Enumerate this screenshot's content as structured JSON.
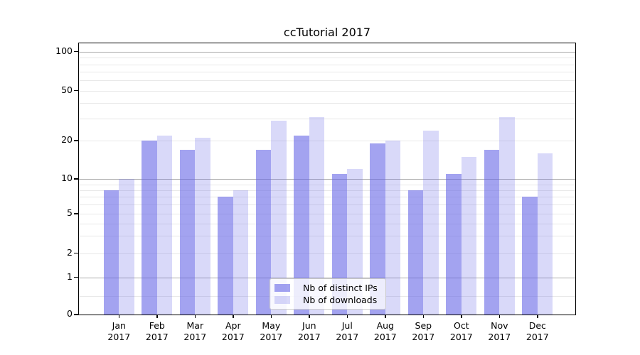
{
  "title": "ccTutorial 2017",
  "chart_data": {
    "type": "bar",
    "title": "ccTutorial 2017",
    "categories": [
      "Jan",
      "Feb",
      "Mar",
      "Apr",
      "May",
      "Jun",
      "Jul",
      "Aug",
      "Sep",
      "Oct",
      "Nov",
      "Dec"
    ],
    "category_year": "2017",
    "series": [
      {
        "name": "Nb of distinct IPs",
        "color": "rgba(102,102,230,0.60)",
        "values": [
          8,
          20,
          17,
          7,
          17,
          22,
          11,
          19,
          8,
          11,
          17,
          7
        ]
      },
      {
        "name": "Nb of downloads",
        "color": "rgba(102,102,230,0.25)",
        "values": [
          10,
          22,
          21,
          8,
          29,
          31,
          12,
          20,
          24,
          15,
          31,
          16
        ]
      }
    ],
    "xlabel": "",
    "ylabel": "",
    "y_axis": {
      "scale": "symlog",
      "tick_labels": [
        "0",
        "1",
        "2",
        "5",
        "10",
        "20",
        "50",
        "100"
      ],
      "tick_values": [
        0,
        1,
        2,
        5,
        10,
        20,
        50,
        100
      ],
      "minor_tick_values": [
        0.5,
        3,
        4,
        6,
        7,
        8,
        9,
        30,
        40,
        60,
        70,
        80,
        90
      ],
      "major_grid_values": [
        1,
        10,
        100
      ],
      "ylim": [
        0,
        120
      ]
    },
    "grid": true,
    "legend": {
      "position": "bottom-center",
      "entries": [
        "Nb of distinct IPs",
        "Nb of downloads"
      ]
    }
  }
}
